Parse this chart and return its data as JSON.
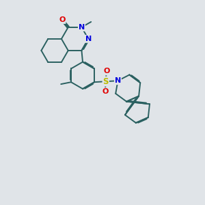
{
  "background_color": "#e0e4e8",
  "bond_color": "#2a6060",
  "bond_lw": 1.4,
  "atom_colors": {
    "O": "#e00000",
    "N": "#0000dd",
    "S": "#bbbb00"
  },
  "fs": 7.5,
  "figsize": [
    3.0,
    3.0
  ],
  "dpi": 100
}
